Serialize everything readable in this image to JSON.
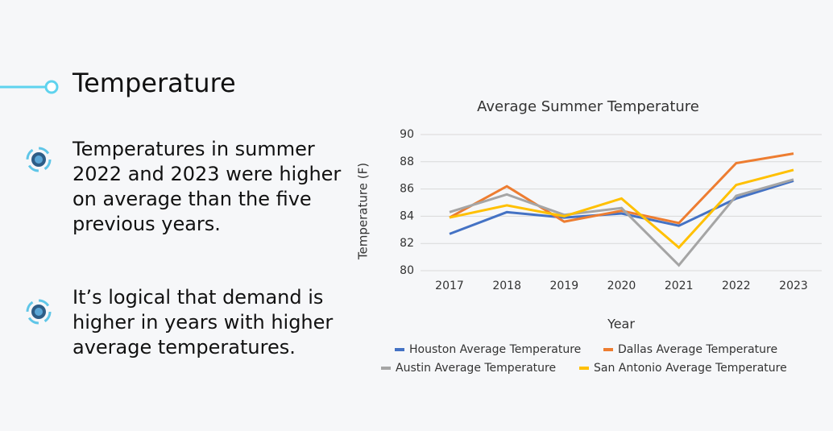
{
  "slide": {
    "title": "Temperature",
    "bullets": [
      "Temperatures in summer 2022 and 2023 were higher on average than the five previous years.",
      "It’s logical that demand is higher in years with higher average temperatures."
    ]
  },
  "chart_data": {
    "type": "line",
    "title": "Average Summer Temperature",
    "x_label": "Year",
    "y_label": "Temperature (F)",
    "categories": [
      "2017",
      "2018",
      "2019",
      "2020",
      "2021",
      "2022",
      "2023"
    ],
    "series": [
      {
        "name": "Houston Average Temperature",
        "color": "#4472c4",
        "values": [
          82.7,
          84.3,
          83.9,
          84.2,
          83.3,
          85.3,
          86.6
        ]
      },
      {
        "name": "Dallas Average Temperature",
        "color": "#ed7d31",
        "values": [
          83.9,
          86.2,
          83.6,
          84.4,
          83.5,
          87.9,
          88.6
        ]
      },
      {
        "name": "Austin Average Temperature",
        "color": "#a5a5a5",
        "values": [
          84.3,
          85.6,
          84.1,
          84.6,
          80.4,
          85.5,
          86.7
        ]
      },
      {
        "name": "San Antonio Average Temperature",
        "color": "#ffc000",
        "values": [
          83.9,
          84.8,
          84.0,
          85.3,
          81.7,
          86.3,
          87.4
        ]
      }
    ],
    "ylim": [
      80,
      90
    ],
    "yticks": [
      80,
      82,
      84,
      86,
      88,
      90
    ],
    "grid": true,
    "legend": "bottom"
  }
}
